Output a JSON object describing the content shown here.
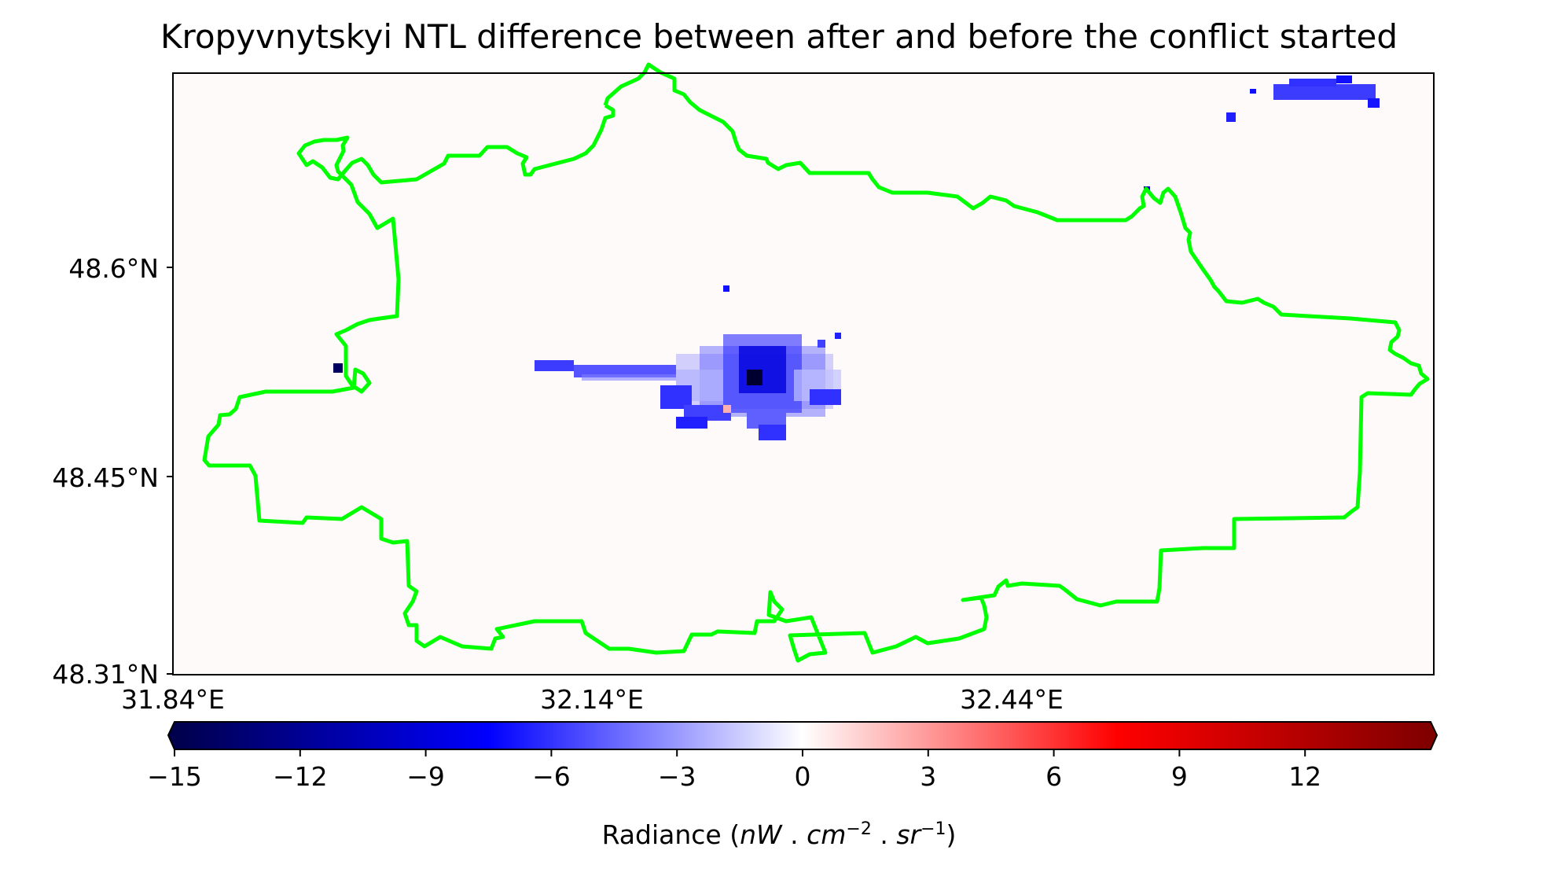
{
  "title": "Kropyvnytskyi NTL difference between after and before the conflict started",
  "lat_ticks": [
    "48.6°N",
    "48.45°N",
    "48.31°N"
  ],
  "lon_ticks": [
    "31.84°E",
    "32.14°E",
    "32.44°E"
  ],
  "colorbar": {
    "ticks": [
      "−15",
      "−12",
      "−9",
      "−6",
      "−3",
      "0",
      "3",
      "6",
      "9",
      "12"
    ],
    "label_prefix": "Radiance (",
    "label_units": [
      "nW",
      " . ",
      "cm",
      "−2",
      " . ",
      "sr",
      "−1"
    ],
    "label_suffix": ")",
    "range": [
      -15,
      15
    ],
    "colormap": [
      "#00004c",
      "#0000ff",
      "#ffffff",
      "#ff0000",
      "#7f0000"
    ]
  },
  "colors": {
    "boundary": "#00ff00",
    "background": "#fffafa"
  }
}
